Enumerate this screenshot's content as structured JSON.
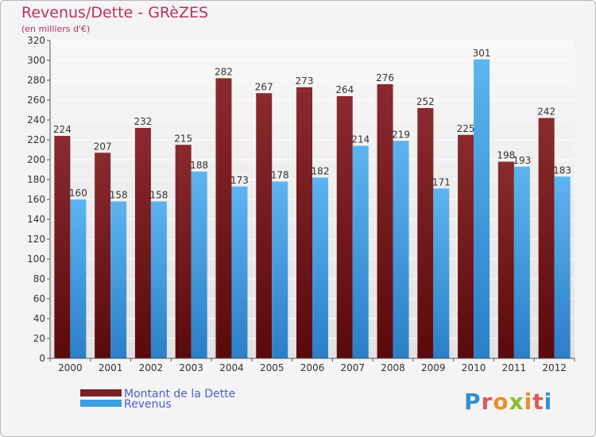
{
  "chart_data": {
    "type": "bar",
    "title": "Revenus/Dette - GRèZES",
    "subtitle": "(en milliers d'€)",
    "categories": [
      "2000",
      "2001",
      "2002",
      "2003",
      "2004",
      "2005",
      "2006",
      "2007",
      "2008",
      "2009",
      "2010",
      "2011",
      "2012"
    ],
    "series": [
      {
        "name": "Montant de la Dette",
        "color": "#7a1f22",
        "values": [
          224,
          207,
          232,
          215,
          282,
          267,
          273,
          264,
          276,
          252,
          225,
          198,
          242
        ]
      },
      {
        "name": "Revenus",
        "color": "#3d9ee0",
        "values": [
          160,
          158,
          158,
          188,
          173,
          178,
          182,
          214,
          219,
          171,
          301,
          193,
          183
        ]
      }
    ],
    "ylim": [
      0,
      320
    ],
    "yticks": [
      0,
      20,
      40,
      60,
      80,
      100,
      120,
      140,
      160,
      180,
      200,
      220,
      240,
      260,
      280,
      300,
      320
    ],
    "grid": true,
    "legend_position": "bottom-left"
  },
  "logo": {
    "text": "Proxiti",
    "alt_text": "Proxiti logo"
  }
}
